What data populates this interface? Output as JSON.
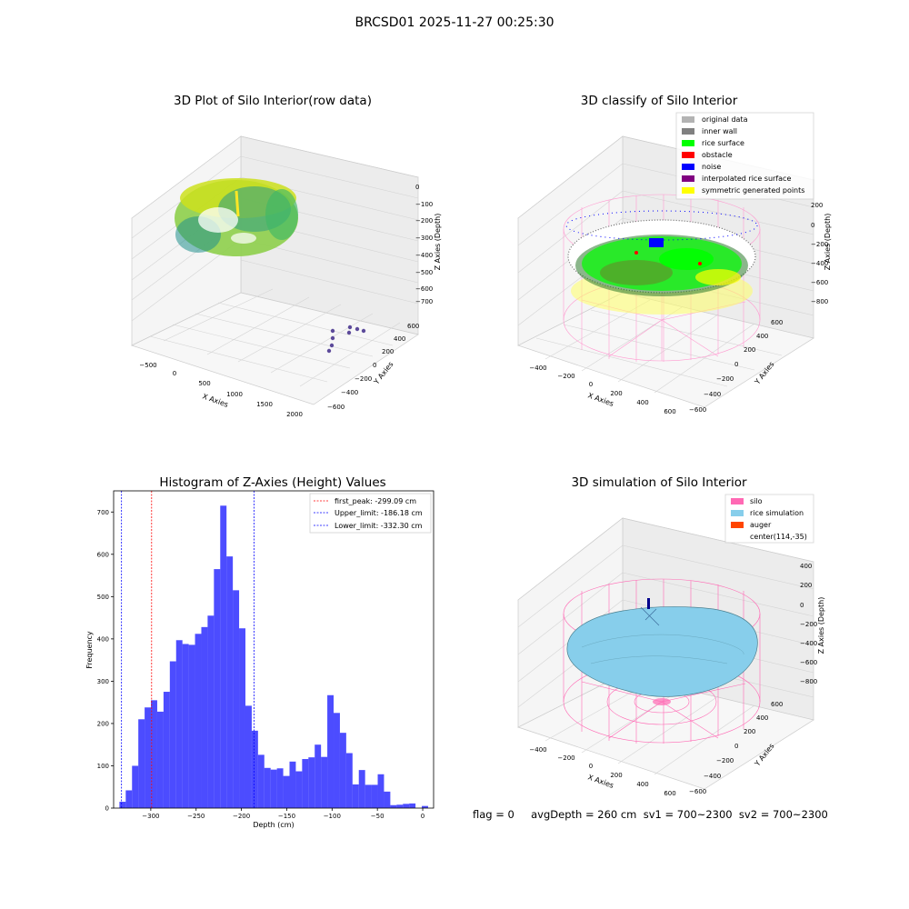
{
  "figure": {
    "suptitle": "BRCSD01 2025-11-27 00:25:30",
    "footer": "flag = 0     avgDepth = 260 cm  sv1 = 700~2300  sv2 = 700~2300"
  },
  "panels": {
    "raw": {
      "title": "3D Plot of Silo Interior(row data)",
      "xlabel": "X Axies",
      "ylabel": "Y Axies",
      "zlabel": "Z Axies (Depth)",
      "xticks": [
        "−500",
        "0",
        "500",
        "1000",
        "1500",
        "2000"
      ],
      "yticks": [
        "600",
        "400",
        "200",
        "0",
        "−200",
        "−400",
        "−600"
      ],
      "zticks": [
        "0",
        "−100",
        "−200",
        "−300",
        "−400",
        "−500",
        "−600",
        "−700"
      ]
    },
    "classify": {
      "title": "3D classify of Silo Interior",
      "xlabel": "X Axies",
      "ylabel": "Y Axies",
      "zlabel": "Z Axies (Depth)",
      "xticks": [
        "−400",
        "−200",
        "0",
        "200",
        "400",
        "600"
      ],
      "yticks": [
        "600",
        "400",
        "200",
        "0",
        "−200",
        "−400",
        "−600"
      ],
      "zticks": [
        "200",
        "0",
        "−200",
        "−400",
        "−600",
        "−800"
      ],
      "legend": [
        {
          "label": "original data",
          "color": "#b3b3b3"
        },
        {
          "label": "inner wall",
          "color": "#808080"
        },
        {
          "label": "rice surface",
          "color": "#00ff00"
        },
        {
          "label": "obstacle",
          "color": "#ff0000"
        },
        {
          "label": "noise",
          "color": "#0000ff"
        },
        {
          "label": "interpolated rice surface",
          "color": "#800080"
        },
        {
          "label": "symmetric generated points",
          "color": "#ffff00"
        }
      ]
    },
    "simulation": {
      "title": "3D simulation of Silo Interior",
      "xlabel": "X Axies",
      "ylabel": "Y Axies",
      "zlabel": "Z Axies (Depth)",
      "xticks": [
        "−400",
        "−200",
        "0",
        "200",
        "400",
        "600"
      ],
      "yticks": [
        "600",
        "400",
        "200",
        "0",
        "−200",
        "−400",
        "−600"
      ],
      "zticks": [
        "400",
        "200",
        "0",
        "−200",
        "−400",
        "−600",
        "−800"
      ],
      "legend": [
        {
          "label": "silo",
          "color": "#ff69b4"
        },
        {
          "label": "rice simulation",
          "color": "#87ceeb"
        },
        {
          "label": "auger",
          "color": "#ff4500"
        },
        {
          "label": "center(114,-35)",
          "color": ""
        }
      ]
    }
  },
  "chart_data": [
    {
      "type": "bar",
      "title": "Histogram of Z-Axies (Height) Values",
      "xlabel": "Depth (cm)",
      "ylabel": "Frequency",
      "xlim": [
        -341,
        12
      ],
      "ylim": [
        0,
        750
      ],
      "xticks": [
        -300,
        -250,
        -200,
        -150,
        -100,
        -50,
        0
      ],
      "xtick_labels": [
        "−300",
        "−250",
        "−200",
        "−150",
        "−100",
        "−50",
        "0"
      ],
      "yticks": [
        0,
        100,
        200,
        300,
        400,
        500,
        600,
        700
      ],
      "bin_start": -334.6,
      "bin_width": 6.95,
      "bar_color": "#0000ff",
      "values": [
        15,
        42,
        100,
        210,
        238,
        255,
        228,
        275,
        347,
        397,
        388,
        386,
        412,
        428,
        455,
        565,
        715,
        595,
        515,
        425,
        242,
        183,
        126,
        95,
        91,
        94,
        76,
        110,
        87,
        116,
        120,
        150,
        121,
        267,
        225,
        178,
        130,
        56,
        90,
        55,
        55,
        80,
        39,
        7,
        8,
        10,
        11,
        0,
        5
      ],
      "vlines": [
        {
          "label": "first_peak: -299.09 cm",
          "x": -299.09,
          "color": "#ff0000"
        },
        {
          "label": "Upper_limit: -186.18 cm",
          "x": -186.18,
          "color": "#0000ff"
        },
        {
          "label": "Lower_limit: -332.30 cm",
          "x": -332.3,
          "color": "#0000ff"
        }
      ]
    }
  ]
}
